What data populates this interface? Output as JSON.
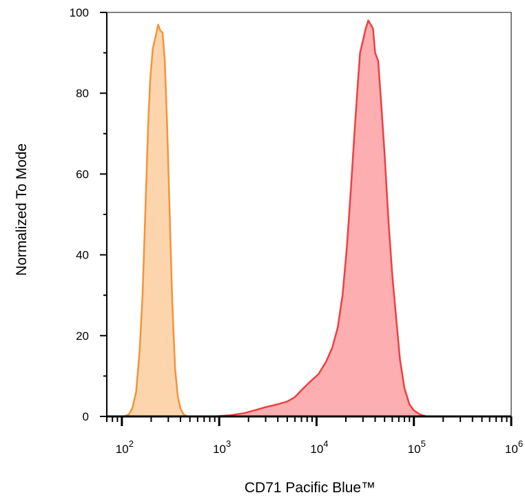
{
  "chart_data": {
    "type": "area",
    "xlabel": "CD71 Pacific Blue™",
    "ylabel": "Normalized To Mode",
    "xscale": "log",
    "xlim": [
      70,
      1000000
    ],
    "ylim": [
      0,
      100
    ],
    "grid": false,
    "legend": "none",
    "y_ticks": [
      0,
      20,
      40,
      60,
      80,
      100
    ],
    "x_ticks": [
      {
        "value": 100,
        "base": "10",
        "exp": "2"
      },
      {
        "value": 1000,
        "base": "10",
        "exp": "3"
      },
      {
        "value": 10000,
        "base": "10",
        "exp": "4"
      },
      {
        "value": 100000,
        "base": "10",
        "exp": "5"
      },
      {
        "value": 1000000,
        "base": "10",
        "exp": "6"
      }
    ],
    "series": [
      {
        "color_fill": "#fdd5ad",
        "color_line": "#f39338",
        "points": [
          [
            105,
            0
          ],
          [
            118,
            0.5
          ],
          [
            128,
            2
          ],
          [
            140,
            6
          ],
          [
            152,
            16
          ],
          [
            163,
            30
          ],
          [
            175,
            52
          ],
          [
            186,
            72
          ],
          [
            196,
            84
          ],
          [
            208,
            91
          ],
          [
            222,
            94
          ],
          [
            236,
            97
          ],
          [
            248,
            95.5
          ],
          [
            262,
            95
          ],
          [
            276,
            88
          ],
          [
            292,
            72
          ],
          [
            310,
            50
          ],
          [
            330,
            28
          ],
          [
            352,
            12
          ],
          [
            375,
            5
          ],
          [
            400,
            2
          ],
          [
            430,
            0.5
          ],
          [
            470,
            0
          ]
        ]
      },
      {
        "color_fill": "#fcaeb0",
        "color_line": "#ef3e40",
        "points": [
          [
            900,
            0
          ],
          [
            1300,
            0.3
          ],
          [
            1800,
            0.8
          ],
          [
            2300,
            1.5
          ],
          [
            3000,
            2.3
          ],
          [
            4000,
            3
          ],
          [
            5000,
            3.7
          ],
          [
            6000,
            4.8
          ],
          [
            7000,
            6.5
          ],
          [
            8500,
            8.5
          ],
          [
            10500,
            10.5
          ],
          [
            12500,
            13.5
          ],
          [
            14500,
            17
          ],
          [
            16500,
            22
          ],
          [
            18500,
            30
          ],
          [
            20500,
            42
          ],
          [
            22500,
            56
          ],
          [
            24500,
            70
          ],
          [
            26500,
            82
          ],
          [
            28000,
            90
          ],
          [
            30000,
            93
          ],
          [
            32000,
            96
          ],
          [
            34000,
            98
          ],
          [
            36000,
            97
          ],
          [
            38000,
            96
          ],
          [
            40000,
            90
          ],
          [
            43000,
            88
          ],
          [
            46000,
            78
          ],
          [
            50000,
            65
          ],
          [
            55000,
            48
          ],
          [
            60000,
            35
          ],
          [
            66000,
            24
          ],
          [
            72000,
            14
          ],
          [
            80000,
            7
          ],
          [
            90000,
            3
          ],
          [
            100000,
            1.5
          ],
          [
            115000,
            0.5
          ],
          [
            135000,
            0
          ]
        ]
      }
    ]
  }
}
